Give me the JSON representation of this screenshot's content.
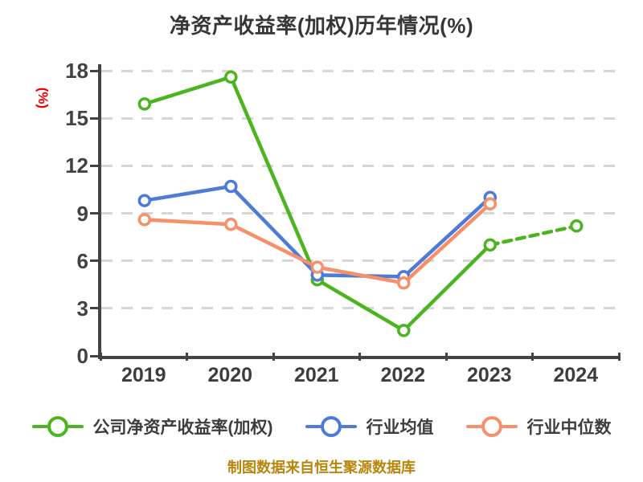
{
  "title": "净资产收益率(加权)历年情况(%)",
  "footer": "制图数据来自恒生聚源数据库",
  "chart_data": {
    "type": "line",
    "title": "净资产收益率(加权)历年情况(%)",
    "xlabel": "",
    "ylabel": "(%)",
    "ylabel_color": "#f10000",
    "categories": [
      "2019",
      "2020",
      "2021",
      "2022",
      "2023",
      "2024"
    ],
    "y_ticks": [
      0,
      3,
      6,
      9,
      12,
      15,
      18
    ],
    "ylim": [
      0,
      18
    ],
    "grid": "horizontal-dashed",
    "grid_color": "#d6d6d6",
    "axis_color": "#434343",
    "legend_position": "bottom",
    "series": [
      {
        "name": "公司净资产收益率(加权)",
        "color": "#4cb41e",
        "values": [
          15.9,
          17.6,
          4.8,
          1.6,
          7.0,
          8.2
        ],
        "dash_from_index": 4
      },
      {
        "name": "行业均值",
        "color": "#4d7bd6",
        "values": [
          9.8,
          10.7,
          5.1,
          5.0,
          10.0,
          null
        ],
        "dash_from_index": null
      },
      {
        "name": "行业中位数",
        "color": "#f5906b",
        "values": [
          8.6,
          8.3,
          5.6,
          4.6,
          9.6,
          null
        ],
        "dash_from_index": null
      }
    ]
  }
}
